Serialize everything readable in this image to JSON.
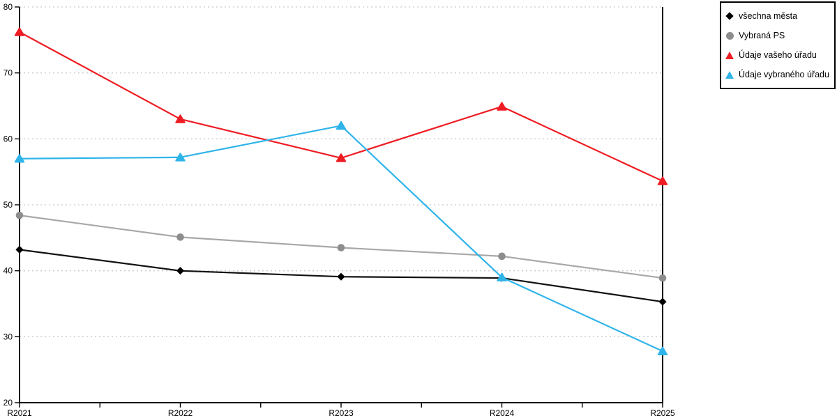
{
  "chart_data": {
    "type": "line",
    "categories": [
      "R2021",
      "R2022",
      "R2023",
      "R2024",
      "R2025"
    ],
    "series": [
      {
        "name": "všechna města",
        "marker": "diamond",
        "line_color": "#111111",
        "marker_color": "#000000",
        "values": [
          43.2,
          40.0,
          39.1,
          38.9,
          35.3
        ]
      },
      {
        "name": "Vybraná PS",
        "marker": "circle",
        "line_color": "#a8a8a8",
        "marker_color": "#8d8d8d",
        "values": [
          48.4,
          45.1,
          43.5,
          42.2,
          38.9
        ]
      },
      {
        "name": "Údaje vašeho úřadu",
        "marker": "triangle",
        "line_color": "#ee1c23",
        "marker_color": "#ee1c23",
        "values": [
          76.2,
          63.0,
          57.1,
          64.9,
          53.6
        ]
      },
      {
        "name": "Údaje vybraného úřadu",
        "marker": "triangle",
        "line_color": "#2fb4ea",
        "marker_color": "#2fb4ea",
        "values": [
          57.0,
          57.2,
          62.0,
          39.0,
          27.8
        ]
      }
    ],
    "title": "",
    "xlabel": "",
    "ylabel": "",
    "ylim": [
      20,
      80
    ],
    "y_ticks": [
      20,
      30,
      40,
      50,
      60,
      70,
      80
    ],
    "grid": "horizontal-dotted",
    "legend_position": "top-right",
    "axis_color": "#000000",
    "grid_color": "#c9c9c9",
    "background_color": "#ffffff"
  }
}
